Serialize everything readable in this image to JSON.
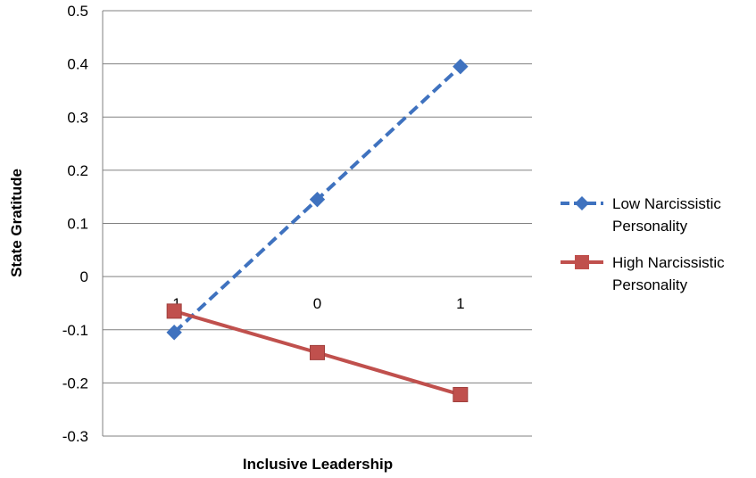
{
  "chart_data": {
    "type": "line",
    "categories": [
      "-1",
      "0",
      "1"
    ],
    "x": [
      -1,
      0,
      1
    ],
    "xlabel": "Inclusive Leadership",
    "ylabel": "State Gratitude",
    "ylim": [
      -0.3,
      0.5
    ],
    "yticks": [
      "0.5",
      "0.4",
      "0.3",
      "0.2",
      "0.1",
      "0",
      "-0.1",
      "-0.2",
      "-0.3"
    ],
    "ytick_values": [
      0.5,
      0.4,
      0.3,
      0.2,
      0.1,
      0,
      -0.1,
      -0.2,
      -0.3
    ],
    "grid": true,
    "legend_position": "right",
    "series": [
      {
        "name_lines": [
          "Low Narcissistic",
          "Personality"
        ],
        "name": "Low Narcissistic Personality",
        "values": [
          -0.105,
          0.145,
          0.395
        ],
        "color": "#3f72bf",
        "line_style": "dashed",
        "marker": "diamond"
      },
      {
        "name_lines": [
          "High Narcissistic",
          "Personality"
        ],
        "name": "High Narcissistic Personality",
        "values": [
          -0.065,
          -0.143,
          -0.222
        ],
        "color": "#c0504d",
        "line_style": "solid",
        "marker": "square"
      }
    ]
  }
}
